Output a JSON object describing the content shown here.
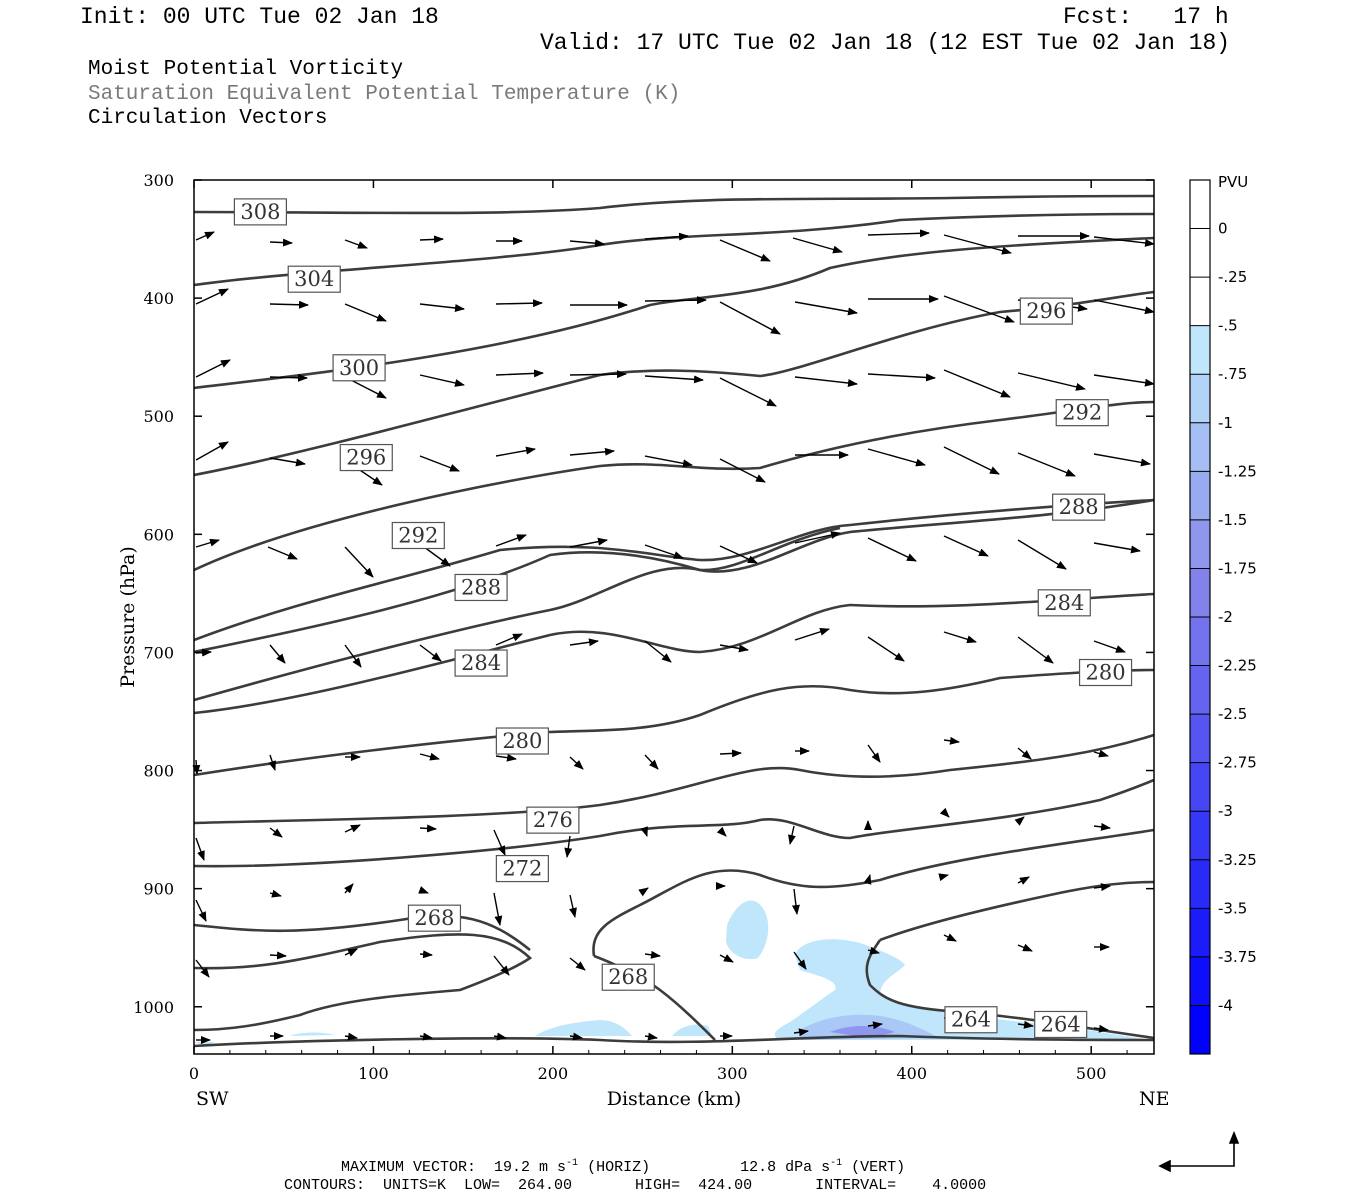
{
  "header": {
    "init": "Init: 00 UTC Tue 02 Jan 18",
    "fcst": "Fcst:   17 h",
    "valid": "Valid: 17 UTC Tue 02 Jan 18 (12 EST Tue 02 Jan 18)",
    "fields": [
      "Moist Potential Vorticity",
      "Saturation Equivalent Potential Temperature (K)",
      "Circulation Vectors"
    ]
  },
  "colorbar": {
    "unit": "PVU",
    "labels": [
      "0",
      "-.25",
      "-.5",
      "-.75",
      "-1",
      "-1.25",
      "-1.5",
      "-1.75",
      "-2",
      "-2.25",
      "-2.5",
      "-2.75",
      "-3",
      "-3.25",
      "-3.5",
      "-3.75",
      "-4"
    ],
    "colors": [
      "#ffffff",
      "#ffffff",
      "#bfe6fa",
      "#b3d2f7",
      "#a6bef4",
      "#9aaaf1",
      "#8e96ee",
      "#8282eb",
      "#7373ee",
      "#6464f0",
      "#5555f2",
      "#4646f4",
      "#3737f6",
      "#2a2af8",
      "#1c1cfa",
      "#0e0efc",
      "#0000ff"
    ]
  },
  "chart_data": {
    "type": "contour cross-section",
    "xlabel": "Distance (km)",
    "ylabel": "Pressure (hPa)",
    "xlim": [
      0,
      535
    ],
    "ylim": [
      1040,
      300
    ],
    "x_ticks": [
      "0",
      "100",
      "200",
      "300",
      "400",
      "500"
    ],
    "y_ticks": [
      "300",
      "400",
      "500",
      "600",
      "700",
      "800",
      "900",
      "1000"
    ],
    "x_end_labels": {
      "left": "SW",
      "right": "NE"
    },
    "contour_labels": [
      {
        "text": "308",
        "x": 37,
        "p": 327
      },
      {
        "text": "304",
        "x": 67,
        "p": 384
      },
      {
        "text": "300",
        "x": 92,
        "p": 459
      },
      {
        "text": "296",
        "x": 96,
        "p": 535
      },
      {
        "text": "292",
        "x": 125,
        "p": 601
      },
      {
        "text": "288",
        "x": 160,
        "p": 645
      },
      {
        "text": "284",
        "x": 160,
        "p": 709
      },
      {
        "text": "280",
        "x": 183,
        "p": 775
      },
      {
        "text": "276",
        "x": 200,
        "p": 842
      },
      {
        "text": "272",
        "x": 183,
        "p": 883
      },
      {
        "text": "268",
        "x": 134,
        "p": 925
      },
      {
        "text": "268",
        "x": 242,
        "p": 975
      },
      {
        "text": "264",
        "x": 433,
        "p": 1011
      },
      {
        "text": "264",
        "x": 483,
        "p": 1015
      },
      {
        "text": "296",
        "x": 475,
        "p": 411
      },
      {
        "text": "292",
        "x": 495,
        "p": 497
      },
      {
        "text": "288",
        "x": 493,
        "p": 577
      },
      {
        "text": "284",
        "x": 485,
        "p": 658
      },
      {
        "text": "280",
        "x": 508,
        "p": 717
      }
    ],
    "contour_values_K": [
      308,
      304,
      300,
      296,
      292,
      288,
      284,
      280,
      276,
      272,
      268,
      264
    ],
    "shading_pvu_range": [
      0,
      -4
    ]
  },
  "footer": {
    "max_vector": "MAXIMUM VECTOR:  19.2 m s",
    "max_vector_sup": "-1",
    "max_vector_mid": " (HORIZ)          12.8 dPa s",
    "max_vector_sup2": "-1",
    "max_vector_end": " (VERT)",
    "contours": "CONTOURS:  UNITS=K  LOW=  264.00       HIGH=  424.00       INTERVAL=    4.0000"
  }
}
